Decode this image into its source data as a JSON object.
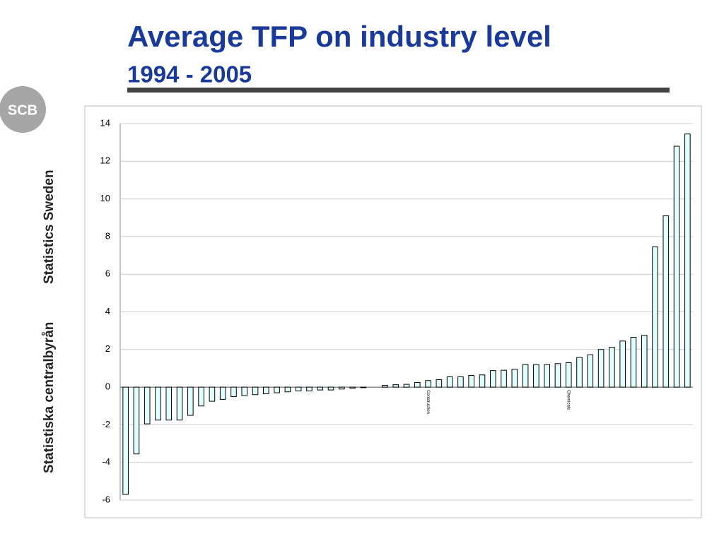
{
  "slide": {
    "logo": "SCB",
    "sidebar": [
      "Statistiska centralbyrån",
      "Statistics Sweden"
    ]
  },
  "chart_data": {
    "type": "bar",
    "title": "Average TFP on industry level",
    "subtitle": "1994 - 2005",
    "categories": [
      null,
      null,
      null,
      null,
      null,
      null,
      null,
      null,
      null,
      null,
      null,
      null,
      null,
      null,
      null,
      null,
      null,
      null,
      null,
      null,
      null,
      null,
      null,
      null,
      null,
      null,
      null,
      null,
      "Construction",
      null,
      null,
      null,
      null,
      null,
      null,
      null,
      null,
      null,
      null,
      null,
      null,
      "Chemicals",
      null,
      null,
      null,
      null,
      null,
      null,
      null,
      null,
      null,
      null,
      null
    ],
    "values": [
      -5.7,
      -3.55,
      -1.95,
      -1.75,
      -1.75,
      -1.75,
      -1.5,
      -1.0,
      -0.75,
      -0.65,
      -0.5,
      -0.45,
      -0.4,
      -0.35,
      -0.3,
      -0.25,
      -0.2,
      -0.2,
      -0.15,
      -0.15,
      -0.1,
      -0.05,
      -0.03,
      0,
      0.1,
      0.13,
      0.15,
      0.25,
      0.35,
      0.4,
      0.55,
      0.55,
      0.62,
      0.65,
      0.88,
      0.9,
      0.95,
      1.2,
      1.2,
      1.2,
      1.25,
      1.3,
      1.58,
      1.72,
      2.0,
      2.12,
      2.45,
      2.65,
      2.75,
      7.45,
      9.1,
      12.8,
      13.45
    ],
    "color": "#e0ffff",
    "ylim": [
      -6,
      14
    ],
    "yticks": [
      -6,
      -4,
      -2,
      0,
      2,
      4,
      6,
      8,
      10,
      12,
      14
    ],
    "grid": true
  }
}
